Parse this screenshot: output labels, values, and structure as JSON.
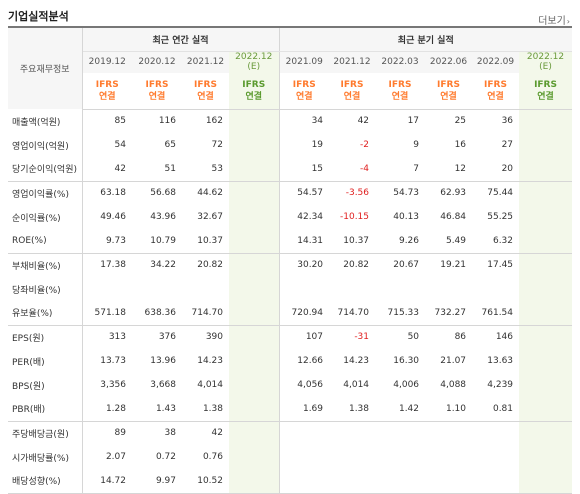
{
  "header": {
    "title": "기업실적분석",
    "more_label": "더보기"
  },
  "table": {
    "label_header": "주요재무정보",
    "annual_group": "최근 연간 실적",
    "quarter_group": "최근 분기 실적",
    "annual_periods": [
      "2019.12",
      "2020.12",
      "2021.12"
    ],
    "annual_estimate": {
      "line1": "2022.12",
      "line2": "(E)"
    },
    "quarter_periods": [
      "2021.09",
      "2021.12",
      "2022.03",
      "2022.06",
      "2022.09"
    ],
    "quarter_estimate": {
      "line1": "2022.12",
      "line2": "(E)"
    },
    "ifrs": {
      "line1": "IFRS",
      "line2": "연결"
    },
    "rows": [
      {
        "label": "매출액(억원)",
        "annual": [
          "85",
          "116",
          "162",
          ""
        ],
        "quarter": [
          "34",
          "42",
          "17",
          "25",
          "36",
          ""
        ]
      },
      {
        "label": "영업이익(억원)",
        "annual": [
          "54",
          "65",
          "72",
          ""
        ],
        "quarter": [
          "19",
          "-2",
          "9",
          "16",
          "27",
          ""
        ]
      },
      {
        "label": "당기순이익(억원)",
        "annual": [
          "42",
          "51",
          "53",
          ""
        ],
        "quarter": [
          "15",
          "-4",
          "7",
          "12",
          "20",
          ""
        ]
      },
      {
        "label": "영업이익률(%)",
        "annual": [
          "63.18",
          "56.68",
          "44.62",
          ""
        ],
        "quarter": [
          "54.57",
          "-3.56",
          "54.73",
          "62.93",
          "75.44",
          ""
        ]
      },
      {
        "label": "순이익률(%)",
        "annual": [
          "49.46",
          "43.96",
          "32.67",
          ""
        ],
        "quarter": [
          "42.34",
          "-10.15",
          "40.13",
          "46.84",
          "55.25",
          ""
        ]
      },
      {
        "label": "ROE(%)",
        "annual": [
          "9.73",
          "10.79",
          "10.37",
          ""
        ],
        "quarter": [
          "14.31",
          "10.37",
          "9.26",
          "5.49",
          "6.32",
          ""
        ]
      },
      {
        "label": "부채비율(%)",
        "annual": [
          "17.38",
          "34.22",
          "20.82",
          ""
        ],
        "quarter": [
          "30.20",
          "20.82",
          "20.67",
          "19.21",
          "17.45",
          ""
        ]
      },
      {
        "label": "당좌비율(%)",
        "annual": [
          "",
          "",
          "",
          ""
        ],
        "quarter": [
          "",
          "",
          "",
          "",
          "",
          ""
        ]
      },
      {
        "label": "유보율(%)",
        "annual": [
          "571.18",
          "638.36",
          "714.70",
          ""
        ],
        "quarter": [
          "720.94",
          "714.70",
          "715.33",
          "732.27",
          "761.54",
          ""
        ]
      },
      {
        "label": "EPS(원)",
        "annual": [
          "313",
          "376",
          "390",
          ""
        ],
        "quarter": [
          "107",
          "-31",
          "50",
          "86",
          "146",
          ""
        ]
      },
      {
        "label": "PER(배)",
        "annual": [
          "13.73",
          "13.96",
          "14.23",
          ""
        ],
        "quarter": [
          "12.66",
          "14.23",
          "16.30",
          "21.07",
          "13.63",
          ""
        ]
      },
      {
        "label": "BPS(원)",
        "annual": [
          "3,356",
          "3,668",
          "4,014",
          ""
        ],
        "quarter": [
          "4,056",
          "4,014",
          "4,006",
          "4,088",
          "4,239",
          ""
        ]
      },
      {
        "label": "PBR(배)",
        "annual": [
          "1.28",
          "1.43",
          "1.38",
          ""
        ],
        "quarter": [
          "1.69",
          "1.38",
          "1.42",
          "1.10",
          "0.81",
          ""
        ]
      },
      {
        "label": "주당배당금(원)",
        "annual": [
          "89",
          "38",
          "42",
          ""
        ],
        "quarter": [
          "",
          "",
          "",
          "",
          "",
          ""
        ]
      },
      {
        "label": "시가배당률(%)",
        "annual": [
          "2.07",
          "0.72",
          "0.76",
          ""
        ],
        "quarter": [
          "",
          "",
          "",
          "",
          "",
          ""
        ]
      },
      {
        "label": "배당성향(%)",
        "annual": [
          "14.72",
          "9.97",
          "10.52",
          ""
        ],
        "quarter": [
          "",
          "",
          "",
          "",
          "",
          ""
        ]
      }
    ]
  },
  "colors": {
    "negative": "#e02020",
    "ifrs": "#ff7a2d",
    "estimate_bg": "#f3f8ea",
    "estimate_text": "#6a9a3c"
  }
}
